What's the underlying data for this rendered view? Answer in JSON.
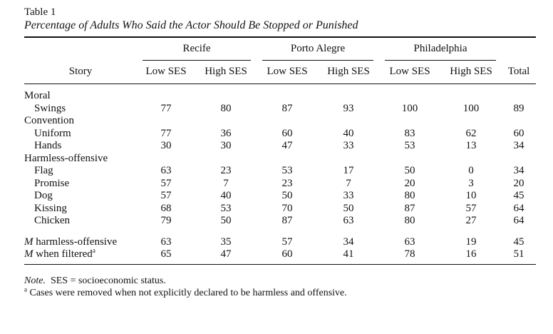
{
  "table_label": "Table 1",
  "caption": "Percentage of Adults Who Said the Actor Should Be Stopped or Punished",
  "city_headers": [
    "Recife",
    "Porto Alegre",
    "Philadelphia"
  ],
  "column_headers": {
    "story": "Story",
    "low1": "Low SES",
    "high1": "High SES",
    "low2": "Low SES",
    "high2": "High SES",
    "low3": "Low SES",
    "high3": "High SES",
    "total": "Total"
  },
  "groups": {
    "moral": "Moral",
    "convention": "Convention",
    "harmless": "Harmless-offensive"
  },
  "rows": {
    "swings": {
      "label": "Swings",
      "v": [
        "77",
        "80",
        "87",
        "93",
        "100",
        "100",
        "89"
      ]
    },
    "uniform": {
      "label": "Uniform",
      "v": [
        "77",
        "36",
        "60",
        "40",
        "83",
        "62",
        "60"
      ]
    },
    "hands": {
      "label": "Hands",
      "v": [
        "30",
        "30",
        "47",
        "33",
        "53",
        "13",
        "34"
      ]
    },
    "flag": {
      "label": "Flag",
      "v": [
        "63",
        "23",
        "53",
        "17",
        "50",
        "0",
        "34"
      ]
    },
    "promise": {
      "label": "Promise",
      "v": [
        "57",
        "7",
        "23",
        "7",
        "20",
        "3",
        "20"
      ]
    },
    "dog": {
      "label": "Dog",
      "v": [
        "57",
        "40",
        "50",
        "33",
        "80",
        "10",
        "45"
      ]
    },
    "kissing": {
      "label": "Kissing",
      "v": [
        "68",
        "53",
        "70",
        "50",
        "87",
        "57",
        "64"
      ]
    },
    "chicken": {
      "label": "Chicken",
      "v": [
        "79",
        "50",
        "87",
        "63",
        "80",
        "27",
        "64"
      ]
    }
  },
  "means": {
    "harmless": {
      "m": "M",
      "label": " harmless-offensive",
      "v": [
        "63",
        "35",
        "57",
        "34",
        "63",
        "19",
        "45"
      ]
    },
    "filtered": {
      "m": "M",
      "label": " when filtered",
      "sup": "a",
      "v": [
        "65",
        "47",
        "60",
        "41",
        "78",
        "16",
        "51"
      ]
    }
  },
  "notes": {
    "note_label": "Note.",
    "note_text": "  SES = socioeconomic status.",
    "footnote_mark": "a",
    "footnote_text": " Cases were removed when not explicitly declared to be harmless and offensive."
  }
}
